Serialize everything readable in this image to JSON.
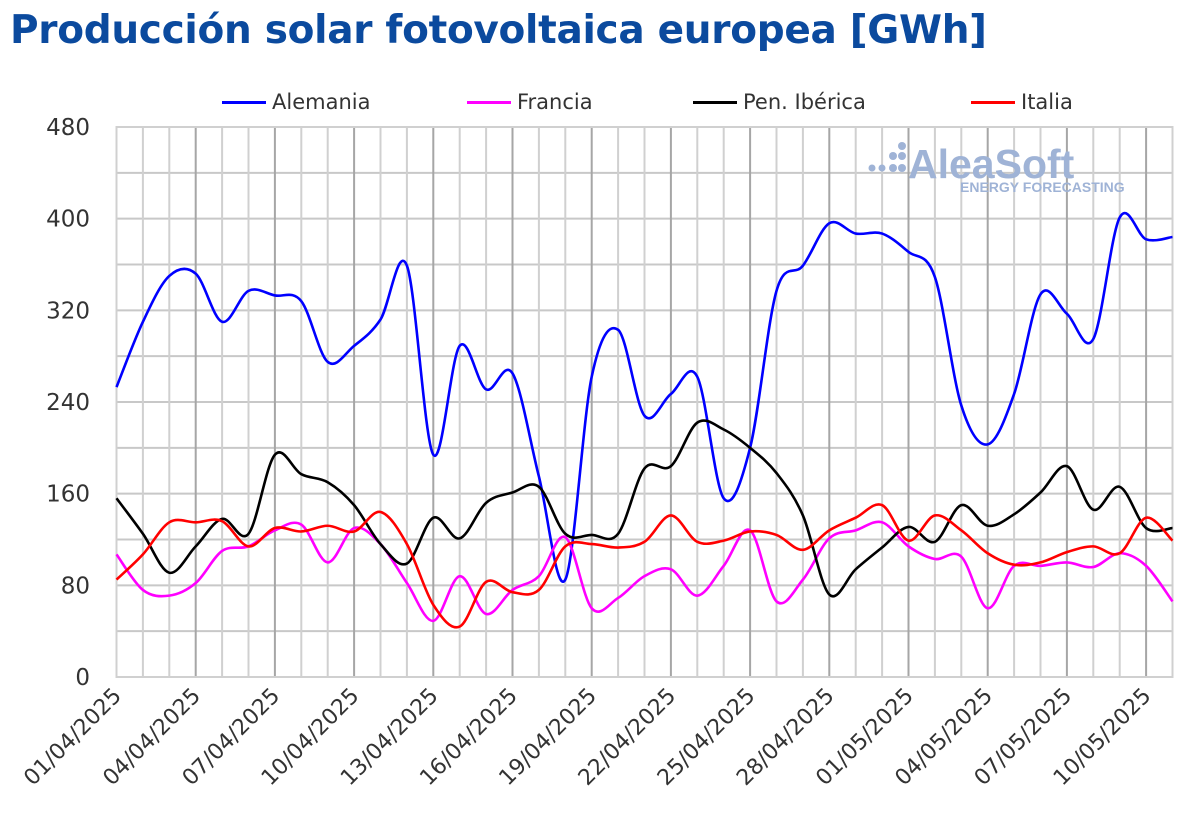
{
  "title": "Producción solar fotovoltaica europea [GWh]",
  "watermark": {
    "brand": "AleaSoft",
    "tagline": "ENERGY FORECASTING"
  },
  "chart_data": {
    "type": "line",
    "title": "Producción solar fotovoltaica europea [GWh]",
    "xlabel": "",
    "ylabel": "",
    "ylim": [
      0,
      480
    ],
    "yticks": [
      0,
      80,
      160,
      240,
      320,
      400,
      480
    ],
    "grid": true,
    "legend_position": "top",
    "x": [
      "01/04/2025",
      "02/04/2025",
      "03/04/2025",
      "04/04/2025",
      "05/04/2025",
      "06/04/2025",
      "07/04/2025",
      "08/04/2025",
      "09/04/2025",
      "10/04/2025",
      "11/04/2025",
      "12/04/2025",
      "13/04/2025",
      "14/04/2025",
      "15/04/2025",
      "16/04/2025",
      "17/04/2025",
      "18/04/2025",
      "19/04/2025",
      "20/04/2025",
      "21/04/2025",
      "22/04/2025",
      "23/04/2025",
      "24/04/2025",
      "25/04/2025",
      "26/04/2025",
      "27/04/2025",
      "28/04/2025",
      "29/04/2025",
      "30/04/2025",
      "01/05/2025",
      "02/05/2025",
      "03/05/2025",
      "04/05/2025",
      "05/05/2025",
      "06/05/2025",
      "07/05/2025",
      "08/05/2025",
      "09/05/2025",
      "10/05/2025",
      "11/05/2025"
    ],
    "xtick_labels": [
      "01/04/2025",
      "04/04/2025",
      "07/04/2025",
      "10/04/2025",
      "13/04/2025",
      "16/04/2025",
      "19/04/2025",
      "22/04/2025",
      "25/04/2025",
      "28/04/2025",
      "01/05/2025",
      "04/05/2025",
      "07/05/2025",
      "10/05/2025"
    ],
    "series": [
      {
        "name": "Alemania",
        "color": "#0000ff",
        "values": [
          253,
          310,
          350,
          352,
          310,
          337,
          333,
          328,
          275,
          289,
          312,
          359,
          194,
          289,
          251,
          265,
          175,
          85,
          262,
          303,
          228,
          247,
          262,
          156,
          200,
          337,
          359,
          396,
          387,
          387,
          371,
          349,
          237,
          203,
          247,
          334,
          317,
          295,
          401,
          382,
          384
        ]
      },
      {
        "name": "Francia",
        "color": "#ff00ff",
        "values": [
          107,
          76,
          71,
          82,
          110,
          114,
          128,
          133,
          100,
          130,
          116,
          82,
          49,
          88,
          55,
          76,
          88,
          122,
          60,
          69,
          88,
          94,
          71,
          97,
          128,
          66,
          85,
          121,
          128,
          135,
          114,
          103,
          105,
          60,
          97,
          97,
          100,
          96,
          108,
          97,
          66
        ]
      },
      {
        "name": "Pen. Ibérica",
        "color": "#000000",
        "values": [
          156,
          125,
          91,
          114,
          138,
          125,
          194,
          177,
          170,
          150,
          116,
          99,
          139,
          121,
          152,
          161,
          166,
          125,
          124,
          125,
          182,
          184,
          222,
          216,
          200,
          178,
          141,
          72,
          94,
          113,
          131,
          118,
          150,
          132,
          142,
          161,
          184,
          146,
          166,
          130,
          130
        ]
      },
      {
        "name": "Italia",
        "color": "#ff0000",
        "values": [
          85,
          107,
          135,
          135,
          136,
          114,
          130,
          127,
          132,
          127,
          144,
          116,
          63,
          44,
          83,
          74,
          76,
          114,
          116,
          113,
          118,
          141,
          118,
          119,
          127,
          124,
          111,
          128,
          139,
          150,
          119,
          141,
          128,
          108,
          98,
          100,
          109,
          114,
          108,
          139,
          119
        ]
      }
    ]
  }
}
